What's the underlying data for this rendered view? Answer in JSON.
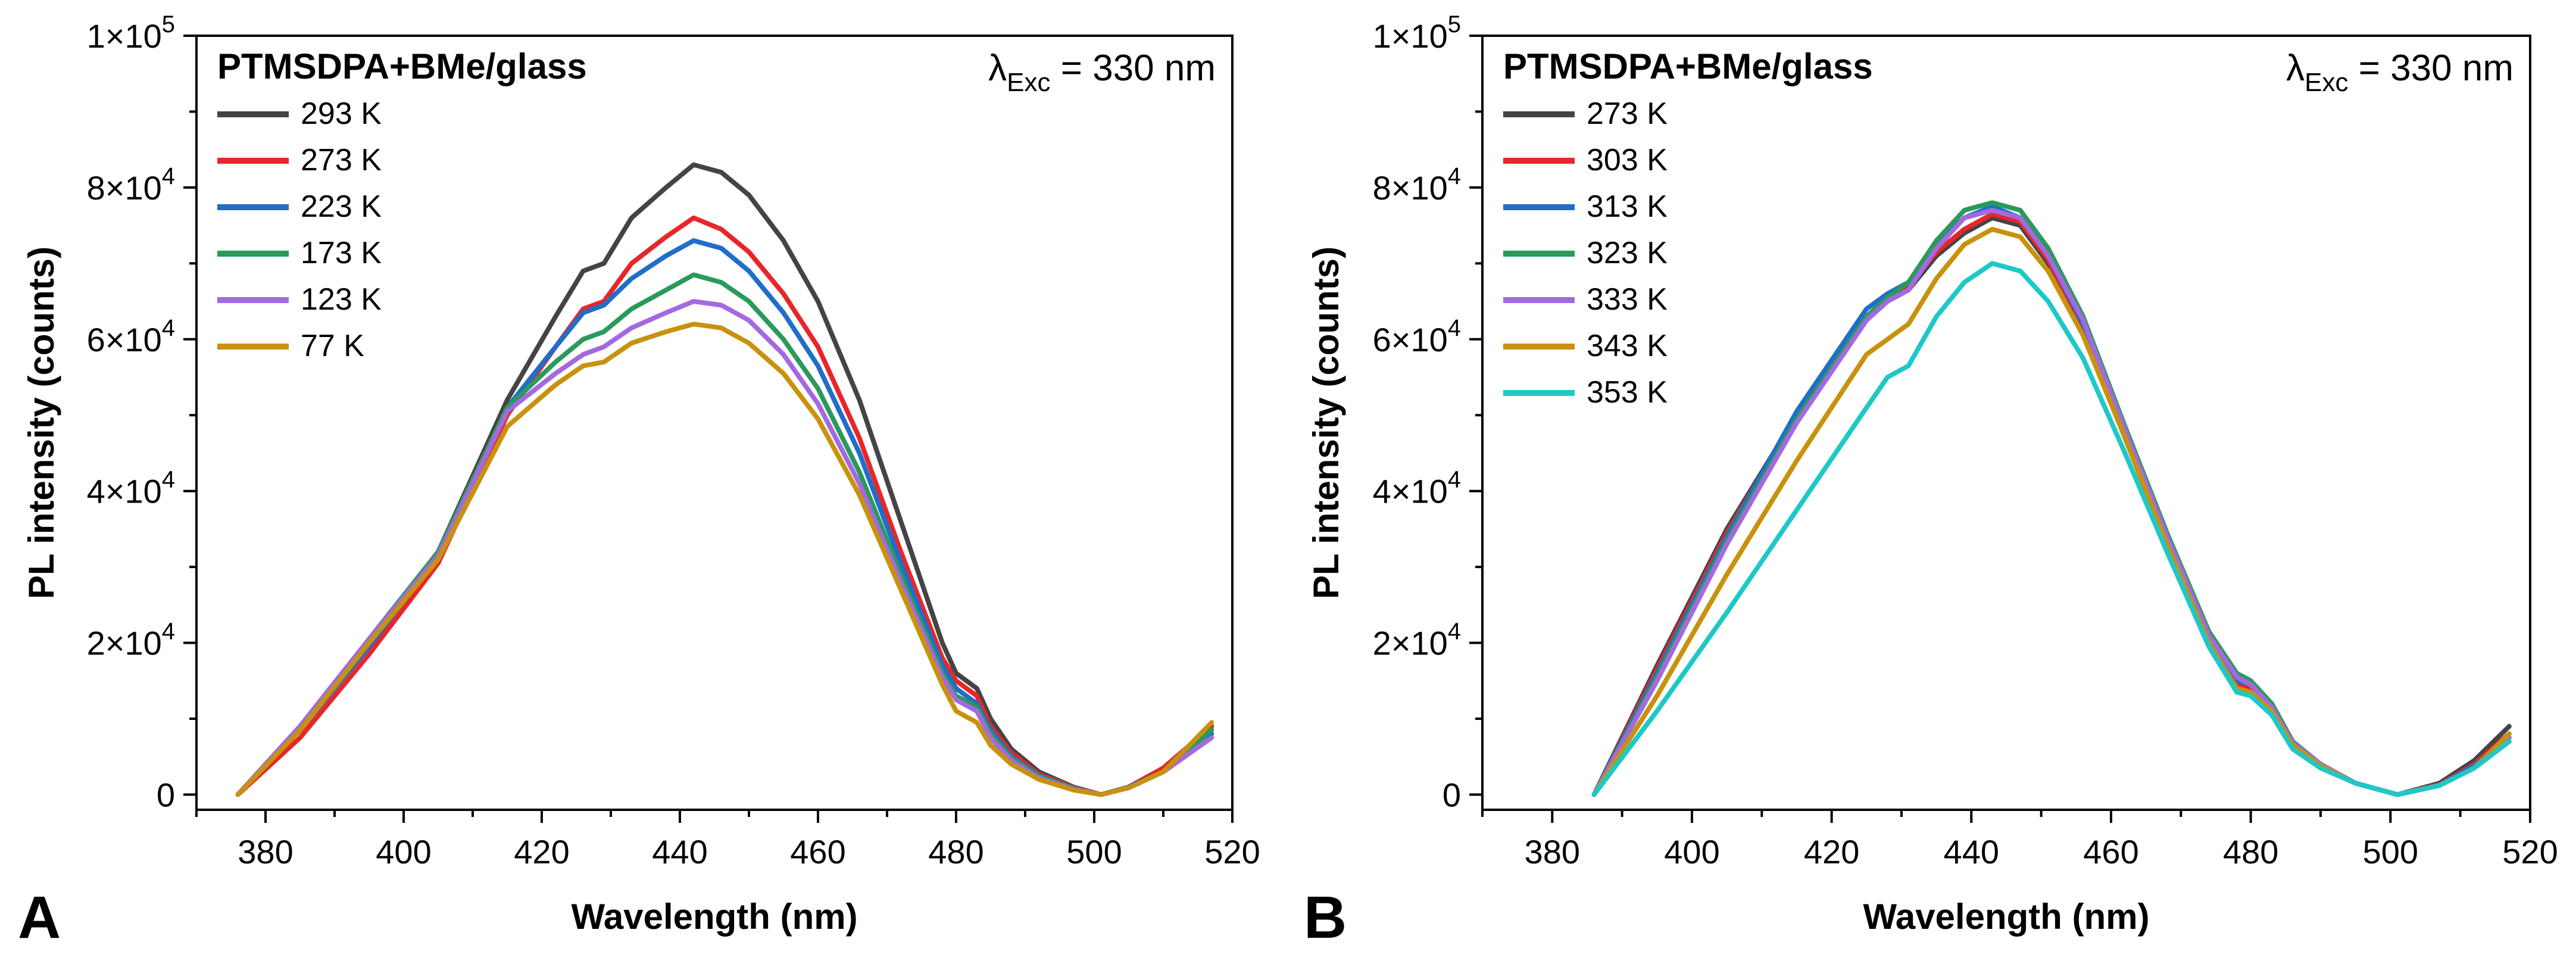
{
  "chart_data": [
    {
      "type": "line",
      "panel": "A",
      "title": "PTMSDPA+BMe/glass",
      "annotation": {
        "lambda": "λ",
        "sub": "Exc",
        "text": " = 330 nm"
      },
      "xlabel": "Wavelength (nm)",
      "ylabel": "PL intensity (counts)",
      "xlim": [
        370,
        520
      ],
      "ylim": [
        -2000,
        100000
      ],
      "xticks": [
        380,
        400,
        420,
        440,
        460,
        480,
        500,
        520
      ],
      "yticks": [
        {
          "value": 0,
          "mant": "0",
          "exp": ""
        },
        {
          "value": 20000,
          "mant": "2×10",
          "exp": "4"
        },
        {
          "value": 40000,
          "mant": "4×10",
          "exp": "4"
        },
        {
          "value": 60000,
          "mant": "6×10",
          "exp": "4"
        },
        {
          "value": 80000,
          "mant": "8×10",
          "exp": "4"
        },
        {
          "value": 100000,
          "mant": "1×10",
          "exp": "5"
        }
      ],
      "grid": false,
      "legend_position": "top-left",
      "x": [
        376,
        385,
        395,
        405,
        415,
        422,
        426,
        429,
        433,
        438,
        442,
        446,
        450,
        455,
        460,
        466,
        472,
        478,
        480,
        483,
        485,
        488,
        492,
        497,
        501,
        505,
        510,
        517
      ],
      "series": [
        {
          "name": "293 K",
          "color": "#444444",
          "values": [
            0,
            9000,
            20000,
            32000,
            52000,
            63000,
            69000,
            70000,
            76000,
            80000,
            83000,
            82000,
            79000,
            73000,
            65000,
            52000,
            36000,
            20000,
            16000,
            14000,
            10000,
            6000,
            3000,
            1000,
            0,
            1000,
            3500,
            9000
          ]
        },
        {
          "name": "273 K",
          "color": "#e8262a",
          "values": [
            0,
            7500,
            18500,
            30500,
            50000,
            59000,
            64000,
            65000,
            70000,
            73500,
            76000,
            74500,
            71500,
            66000,
            59000,
            47000,
            32000,
            18000,
            15000,
            13000,
            9000,
            5500,
            2700,
            900,
            0,
            1000,
            3500,
            9000
          ]
        },
        {
          "name": "223 K",
          "color": "#1f6ec9",
          "values": [
            0,
            8500,
            19500,
            31500,
            51000,
            59000,
            63500,
            64500,
            68000,
            71000,
            73000,
            72000,
            69000,
            63500,
            56500,
            45000,
            30500,
            17000,
            14000,
            12000,
            8500,
            5000,
            2500,
            800,
            0,
            1000,
            3000,
            8000
          ]
        },
        {
          "name": "173 K",
          "color": "#2a9a5c",
          "values": [
            0,
            9000,
            20500,
            32000,
            51000,
            57000,
            60000,
            61000,
            64000,
            66500,
            68500,
            67500,
            65000,
            60000,
            53500,
            42500,
            29000,
            16000,
            13000,
            11500,
            8000,
            4800,
            2400,
            800,
            0,
            900,
            3000,
            8500
          ]
        },
        {
          "name": "123 K",
          "color": "#a36ae0",
          "values": [
            0,
            9000,
            20500,
            31500,
            50500,
            55500,
            58000,
            59000,
            61500,
            63500,
            65000,
            64500,
            62500,
            58000,
            51500,
            41000,
            28000,
            15500,
            12500,
            11000,
            7500,
            4500,
            2200,
            700,
            0,
            900,
            3000,
            7500
          ]
        },
        {
          "name": "77 K",
          "color": "#c8920e",
          "values": [
            0,
            8500,
            20000,
            31000,
            48500,
            54000,
            56500,
            57000,
            59500,
            61000,
            62000,
            61500,
            59500,
            55500,
            49500,
            39500,
            27000,
            14500,
            11000,
            9500,
            6500,
            4000,
            2000,
            600,
            0,
            900,
            3000,
            9500
          ]
        }
      ]
    },
    {
      "type": "line",
      "panel": "B",
      "title": "PTMSDPA+BMe/glass",
      "annotation": {
        "lambda": "λ",
        "sub": "Exc",
        "text": " = 330 nm"
      },
      "xlabel": "Wavelength (nm)",
      "ylabel": "PL intensity (counts)",
      "xlim": [
        370,
        520
      ],
      "ylim": [
        -2000,
        100000
      ],
      "xticks": [
        380,
        400,
        420,
        440,
        460,
        480,
        500,
        520
      ],
      "yticks": [
        {
          "value": 0,
          "mant": "0",
          "exp": ""
        },
        {
          "value": 20000,
          "mant": "2×10",
          "exp": "4"
        },
        {
          "value": 40000,
          "mant": "4×10",
          "exp": "4"
        },
        {
          "value": 60000,
          "mant": "6×10",
          "exp": "4"
        },
        {
          "value": 80000,
          "mant": "8×10",
          "exp": "4"
        },
        {
          "value": 100000,
          "mant": "1×10",
          "exp": "5"
        }
      ],
      "grid": false,
      "legend_position": "top-left",
      "x": [
        386,
        395,
        405,
        415,
        425,
        428,
        431,
        435,
        439,
        443,
        447,
        451,
        456,
        462,
        468,
        474,
        478,
        480,
        483,
        486,
        490,
        495,
        501,
        507,
        512,
        517
      ],
      "series": [
        {
          "name": "273 K",
          "color": "#444444",
          "values": [
            0,
            17000,
            35000,
            50000,
            63000,
            65000,
            66500,
            71000,
            74000,
            76000,
            75000,
            70000,
            61000,
            47000,
            33000,
            20000,
            14000,
            13500,
            11000,
            6500,
            4000,
            1500,
            0,
            1500,
            4500,
            9000
          ]
        },
        {
          "name": "303 K",
          "color": "#e8262a",
          "values": [
            0,
            16500,
            34500,
            50000,
            63000,
            65500,
            67000,
            71500,
            74500,
            76500,
            75500,
            70500,
            61500,
            47500,
            33500,
            20500,
            14500,
            14000,
            11500,
            6500,
            4000,
            1500,
            0,
            1300,
            4000,
            8000
          ]
        },
        {
          "name": "313 K",
          "color": "#1f6ec9",
          "values": [
            0,
            16000,
            34000,
            50500,
            64000,
            66000,
            67500,
            72500,
            76000,
            77500,
            76000,
            71000,
            62000,
            48000,
            34000,
            21000,
            15000,
            14500,
            12000,
            7000,
            4000,
            1500,
            0,
            1200,
            3800,
            7500
          ]
        },
        {
          "name": "323 K",
          "color": "#2a9a5c",
          "values": [
            0,
            15500,
            33500,
            49500,
            63000,
            65500,
            67500,
            73000,
            77000,
            78000,
            77000,
            72000,
            63000,
            48500,
            34500,
            21500,
            16000,
            15000,
            12000,
            7000,
            4000,
            1500,
            0,
            1200,
            3500,
            7000
          ]
        },
        {
          "name": "333 K",
          "color": "#a36ae0",
          "values": [
            0,
            15000,
            33000,
            49000,
            62500,
            65000,
            66500,
            72000,
            76000,
            77000,
            76000,
            71000,
            62500,
            48000,
            34000,
            21000,
            15500,
            14500,
            11500,
            6800,
            4000,
            1500,
            0,
            1200,
            3500,
            7500
          ]
        },
        {
          "name": "343 K",
          "color": "#c8920e",
          "values": [
            0,
            13000,
            29000,
            44000,
            58000,
            60000,
            62000,
            68000,
            72500,
            74500,
            73500,
            69000,
            60500,
            47000,
            33000,
            20000,
            14000,
            13500,
            11000,
            6500,
            3800,
            1500,
            0,
            1200,
            3500,
            8000
          ]
        },
        {
          "name": "353 K",
          "color": "#1ec8c8",
          "values": [
            0,
            11000,
            24000,
            37500,
            51000,
            55000,
            56500,
            63000,
            67500,
            70000,
            69000,
            65000,
            57500,
            45000,
            32000,
            19500,
            13500,
            13000,
            10500,
            6000,
            3500,
            1500,
            0,
            1200,
            3500,
            7000
          ]
        }
      ]
    }
  ]
}
